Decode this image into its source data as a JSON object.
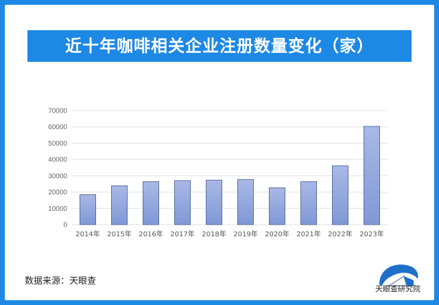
{
  "title": "近十年咖啡相关企业注册数量变化（家）",
  "source": "数据来源：天眼查",
  "logo_text": "天眼查研究院",
  "colors": {
    "frame": "#1e88e5",
    "bar_top": "#a9b9e6",
    "bar_bottom": "#7f98d6",
    "bar_stroke": "#5a6f9c"
  },
  "chart_data": {
    "type": "bar",
    "title": "近十年咖啡相关企业注册数量变化（家）",
    "categories": [
      "2014年",
      "2015年",
      "2016年",
      "2017年",
      "2018年",
      "2019年",
      "2020年",
      "2021年",
      "2022年",
      "2023年"
    ],
    "values": [
      18400,
      23800,
      26400,
      27000,
      27300,
      27700,
      22600,
      26400,
      36100,
      60300
    ],
    "ylim": [
      0,
      70000
    ],
    "yticks": [
      "0",
      "10000",
      "20000",
      "30000",
      "40000",
      "50000",
      "60000",
      "70000"
    ],
    "grid": true,
    "xlabel": "",
    "ylabel": ""
  }
}
